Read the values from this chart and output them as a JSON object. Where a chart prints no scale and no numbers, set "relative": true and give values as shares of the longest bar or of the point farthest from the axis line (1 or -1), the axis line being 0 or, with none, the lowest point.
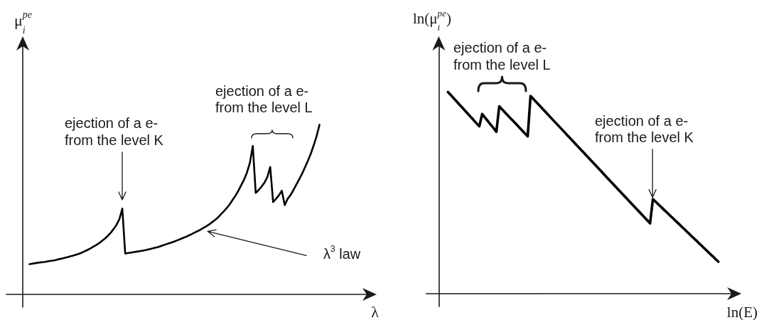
{
  "chart_data": [
    {
      "type": "line",
      "relative": true,
      "xlabel": "λ",
      "ylabel": "μ$_{i}$$^{pe}$",
      "color": "#000000",
      "marker": "none",
      "line_style": "solid",
      "annotations": [
        "ejection of a e-\nfrom the level K",
        "ejection of a e-\nfrom the level L",
        "λ$^{3}$ law"
      ],
      "categories": [
        null,
        null,
        null,
        null,
        null,
        null,
        null,
        null,
        null,
        null,
        null,
        null,
        null,
        null,
        null,
        null,
        null,
        null,
        null,
        null,
        null,
        null,
        null,
        null,
        null,
        null,
        null,
        null,
        null,
        null,
        null,
        null,
        null,
        null,
        null,
        null,
        null,
        null,
        null,
        null,
        null,
        null,
        null,
        null,
        null,
        null,
        null,
        null,
        null,
        null,
        null,
        null,
        null,
        null,
        null,
        null,
        null,
        null,
        null,
        null,
        null,
        null,
        null,
        null,
        null,
        null,
        null,
        null,
        null,
        null,
        null,
        null,
        null,
        null,
        null,
        null,
        null,
        null,
        null,
        null,
        null,
        null,
        null,
        null,
        null,
        null,
        null,
        null,
        null,
        null,
        null,
        null,
        null,
        null,
        null,
        null,
        null,
        null,
        null,
        null,
        null
      ],
      "values": [
        0.178,
        0.181,
        0.184,
        0.187,
        0.189,
        0.191,
        0.194,
        0.197,
        0.199,
        0.202,
        0.207,
        0.211,
        0.215,
        0.219,
        0.224,
        0.228,
        0.234,
        0.239,
        0.246,
        0.254,
        0.262,
        0.271,
        0.281,
        0.291,
        0.302,
        0.315,
        0.329,
        0.345,
        0.363,
        0.385,
        0.41,
        0.444,
        0.506,
        0.241,
        0.244,
        0.246,
        0.249,
        0.252,
        0.255,
        0.258,
        0.261,
        0.265,
        0.269,
        0.274,
        0.278,
        0.283,
        0.289,
        0.295,
        0.301,
        0.306,
        0.312,
        0.319,
        0.326,
        0.333,
        0.34,
        0.348,
        0.356,
        0.365,
        0.373,
        0.382,
        0.392,
        0.402,
        0.413,
        0.426,
        0.439,
        0.454,
        0.472,
        0.49,
        0.509,
        0.53,
        0.556,
        0.581,
        0.61,
        0.644,
        0.677,
        0.719,
        0.776,
        0.875,
        0.598,
        0.615,
        0.635,
        0.658,
        0.691,
        0.751,
        0.544,
        0.563,
        0.584,
        0.611,
        0.526,
        0.563,
        0.585,
        0.615,
        0.647,
        0.678,
        0.712,
        0.749,
        0.788,
        0.83,
        0.879,
        0.933,
        1
      ]
    },
    {
      "type": "line",
      "relative": true,
      "xlabel": "ln(E)",
      "ylabel": "ln(μ$_{i}$$^{pe}$)",
      "color": "#000000",
      "marker": "none",
      "line_style": "solid",
      "annotations": [
        "ejection of a e-\nfrom the level L",
        "ejection of a e-\nfrom the level K"
      ],
      "categories": [
        null,
        null,
        null,
        null,
        null,
        null,
        null,
        null,
        null,
        null,
        null,
        null,
        null,
        null,
        null,
        null,
        null,
        null,
        null,
        null,
        null,
        null,
        null,
        null,
        null,
        null,
        null,
        null,
        null,
        null,
        null,
        null,
        null,
        null,
        null,
        null,
        null,
        null,
        null,
        null,
        null,
        null,
        null,
        null,
        null,
        null,
        null,
        null,
        null,
        null,
        null,
        null,
        null,
        null,
        null,
        null,
        null,
        null,
        null,
        null,
        null,
        null,
        null,
        null,
        null,
        null,
        null,
        null,
        null,
        null,
        null,
        null,
        null,
        null,
        null,
        null,
        null,
        null,
        null,
        null,
        null,
        null,
        null,
        null,
        null,
        null,
        null,
        null,
        null,
        null,
        null,
        null,
        null,
        null,
        null,
        null
      ],
      "values": [
        1,
        0.985,
        0.969,
        0.954,
        0.938,
        0.923,
        0.907,
        0.892,
        0.876,
        0.861,
        0.845,
        0.83,
        0.891,
        0.873,
        0.856,
        0.838,
        0.821,
        0.803,
        0.929,
        0.914,
        0.899,
        0.884,
        0.869,
        0.855,
        0.84,
        0.825,
        0.81,
        0.795,
        0.78,
        0.98,
        0.965,
        0.95,
        0.935,
        0.92,
        0.905,
        0.89,
        0.875,
        0.86,
        0.845,
        0.83,
        0.815,
        0.8,
        0.785,
        0.77,
        0.755,
        0.74,
        0.725,
        0.71,
        0.695,
        0.68,
        0.665,
        0.65,
        0.635,
        0.62,
        0.605,
        0.589,
        0.574,
        0.559,
        0.544,
        0.529,
        0.514,
        0.499,
        0.484,
        0.469,
        0.454,
        0.439,
        0.424,
        0.409,
        0.394,
        0.379,
        0.364,
        0.349,
        0.469,
        0.456,
        0.442,
        0.429,
        0.415,
        0.402,
        0.388,
        0.375,
        0.361,
        0.348,
        0.334,
        0.321,
        0.307,
        0.294,
        0.28,
        0.267,
        0.253,
        0.24,
        0.226,
        0.213,
        0.199,
        0.186,
        0.172,
        0.159
      ]
    }
  ]
}
